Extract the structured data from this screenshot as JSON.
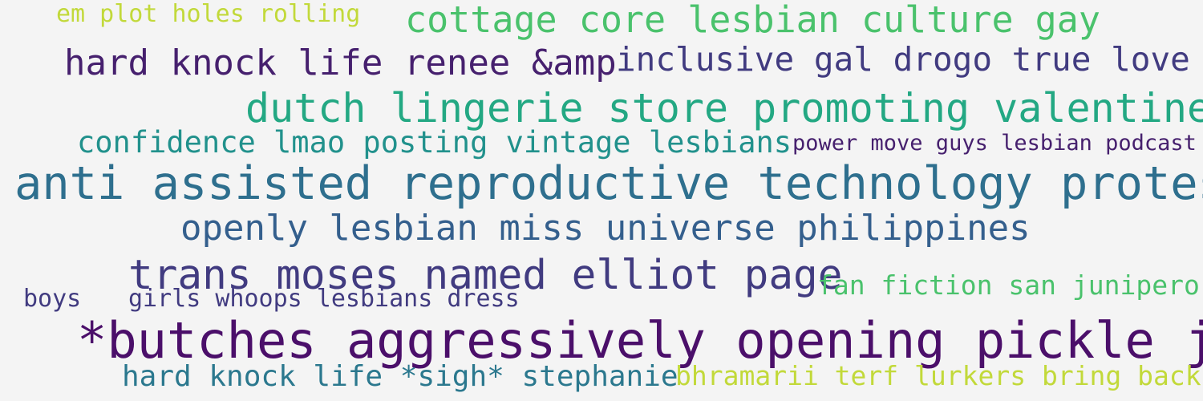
{
  "colors": {
    "background": "#f4f4f4",
    "yellow_green": "#c2d93a",
    "green": "#4ac26c",
    "purple_dark": "#46206e",
    "indigo": "#413b80",
    "teal_green": "#23a883",
    "teal": "#21918c",
    "blue_teal": "#2e6f8e",
    "blue": "#345f8d",
    "deep_purple": "#4b0f6a",
    "teal_blue": "#2b788e"
  },
  "wordcloud": [
    {
      "text": "em plot holes rolling",
      "color": "yellow_green"
    },
    {
      "text": "cottage core lesbian culture gay",
      "color": "green"
    },
    {
      "text": "hard knock life renee &amp",
      "color": "purple_dark"
    },
    {
      "text": "inclusive gal drogo true love",
      "color": "indigo"
    },
    {
      "text": "dutch lingerie store promoting valentine",
      "color": "teal_green"
    },
    {
      "text": "confidence lmao posting vintage lesbians",
      "color": "teal"
    },
    {
      "text": "power move guys lesbian podcast",
      "color": "purple_dark"
    },
    {
      "text": "anti assisted reproductive technology protest",
      "color": "blue_teal"
    },
    {
      "text": "openly lesbian miss universe philippines",
      "color": "blue"
    },
    {
      "text": "trans moses named elliot page",
      "color": "indigo"
    },
    {
      "text": "fan fiction san junipero",
      "color": "green"
    },
    {
      "text": "boys",
      "color": "indigo"
    },
    {
      "text": "girls whoops lesbians dress",
      "color": "indigo"
    },
    {
      "text": "*butches aggressively opening pickle jars",
      "color": "deep_purple"
    },
    {
      "text": "hard knock life *sigh* stephanie",
      "color": "teal_blue"
    },
    {
      "text": "bhramarii terf lurkers bring back",
      "color": "yellow_green"
    }
  ]
}
